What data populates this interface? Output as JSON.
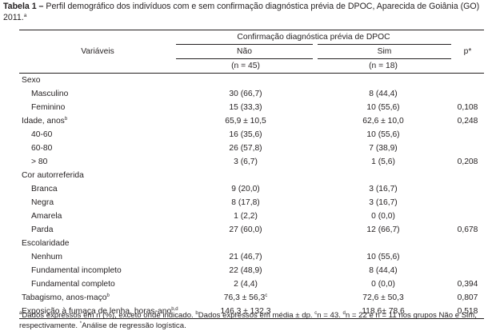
{
  "caption": {
    "label": "Tabela 1 –",
    "text": "Perfil demográfico dos indivíduos com e sem confirmação diagnóstica prévia de DPOC, Aparecida de Goiânia (GO) 2011.",
    "marker": "a"
  },
  "header": {
    "variable_label": "Variáveis",
    "group_label": "Confirmação diagnóstica prévia de DPOC",
    "col_no": "Não",
    "col_yes": "Sim",
    "n_no": "(n = 45)",
    "n_yes": "(n = 18)",
    "p_label": "p*"
  },
  "rows": [
    {
      "label": "Sexo",
      "sup": "",
      "indent": 0,
      "no": "",
      "no_sup": "",
      "yes": "",
      "p": ""
    },
    {
      "label": "Masculino",
      "sup": "",
      "indent": 1,
      "no": "30 (66,7)",
      "no_sup": "",
      "yes": "8 (44,4)",
      "p": ""
    },
    {
      "label": "Feminino",
      "sup": "",
      "indent": 1,
      "no": "15 (33,3)",
      "no_sup": "",
      "yes": "10 (55,6)",
      "p": "0,108"
    },
    {
      "label": "Idade, anos",
      "sup": "b",
      "indent": 0,
      "no": "65,9 ± 10,5",
      "no_sup": "",
      "yes": "62,6 ± 10,0",
      "p": "0,248"
    },
    {
      "label": "40-60",
      "sup": "",
      "indent": 1,
      "no": "16 (35,6)",
      "no_sup": "",
      "yes": "10 (55,6)",
      "p": ""
    },
    {
      "label": "60-80",
      "sup": "",
      "indent": 1,
      "no": "26 (57,8)",
      "no_sup": "",
      "yes": "7 (38,9)",
      "p": ""
    },
    {
      "label": "> 80",
      "sup": "",
      "indent": 1,
      "no": "3 (6,7)",
      "no_sup": "",
      "yes": "1 (5,6)",
      "p": "0,208"
    },
    {
      "label": "Cor autorreferida",
      "sup": "",
      "indent": 0,
      "no": "",
      "no_sup": "",
      "yes": "",
      "p": ""
    },
    {
      "label": "Branca",
      "sup": "",
      "indent": 1,
      "no": "9 (20,0)",
      "no_sup": "",
      "yes": "3 (16,7)",
      "p": ""
    },
    {
      "label": "Negra",
      "sup": "",
      "indent": 1,
      "no": "8 (17,8)",
      "no_sup": "",
      "yes": "3 (16,7)",
      "p": ""
    },
    {
      "label": "Amarela",
      "sup": "",
      "indent": 1,
      "no": "1 (2,2)",
      "no_sup": "",
      "yes": "0 (0,0)",
      "p": ""
    },
    {
      "label": "Parda",
      "sup": "",
      "indent": 1,
      "no": "27 (60,0)",
      "no_sup": "",
      "yes": "12 (66,7)",
      "p": "0,678"
    },
    {
      "label": "Escolaridade",
      "sup": "",
      "indent": 0,
      "no": "",
      "no_sup": "",
      "yes": "",
      "p": ""
    },
    {
      "label": "Nenhum",
      "sup": "",
      "indent": 1,
      "no": "21 (46,7)",
      "no_sup": "",
      "yes": "10 (55,6)",
      "p": ""
    },
    {
      "label": "Fundamental incompleto",
      "sup": "",
      "indent": 1,
      "no": "22 (48,9)",
      "no_sup": "",
      "yes": "8 (44,4)",
      "p": ""
    },
    {
      "label": "Fundamental completo",
      "sup": "",
      "indent": 1,
      "no": "2 (4,4)",
      "no_sup": "",
      "yes": "0 (0,0)",
      "p": "0,394"
    },
    {
      "label": "Tabagismo, anos-maço",
      "sup": "b",
      "indent": 0,
      "no": "76,3 ± 56,3",
      "no_sup": "c",
      "yes": "72,6 ± 50,3",
      "p": "0,807"
    },
    {
      "label": "Exposição à fumaça de lenha, horas-ano",
      "sup": "b,d",
      "indent": 0,
      "no": "146,3 ± 132,3",
      "no_sup": "",
      "yes": "118,6± 78,6",
      "p": "0,518"
    }
  ],
  "footnote": {
    "m_a": "a",
    "t_a": "Dados expressos em n (%), exceto onde indicado. ",
    "m_b": "b",
    "t_b": "Dados expressos em média ± dp. ",
    "m_c": "c",
    "t_c": "n = 43. ",
    "m_d": "d",
    "t_d": "n = 22 e n = 11 nos grupos Não e Sim, respectivamente. ",
    "m_star": "*",
    "t_star": "Análise de regressão logística."
  }
}
